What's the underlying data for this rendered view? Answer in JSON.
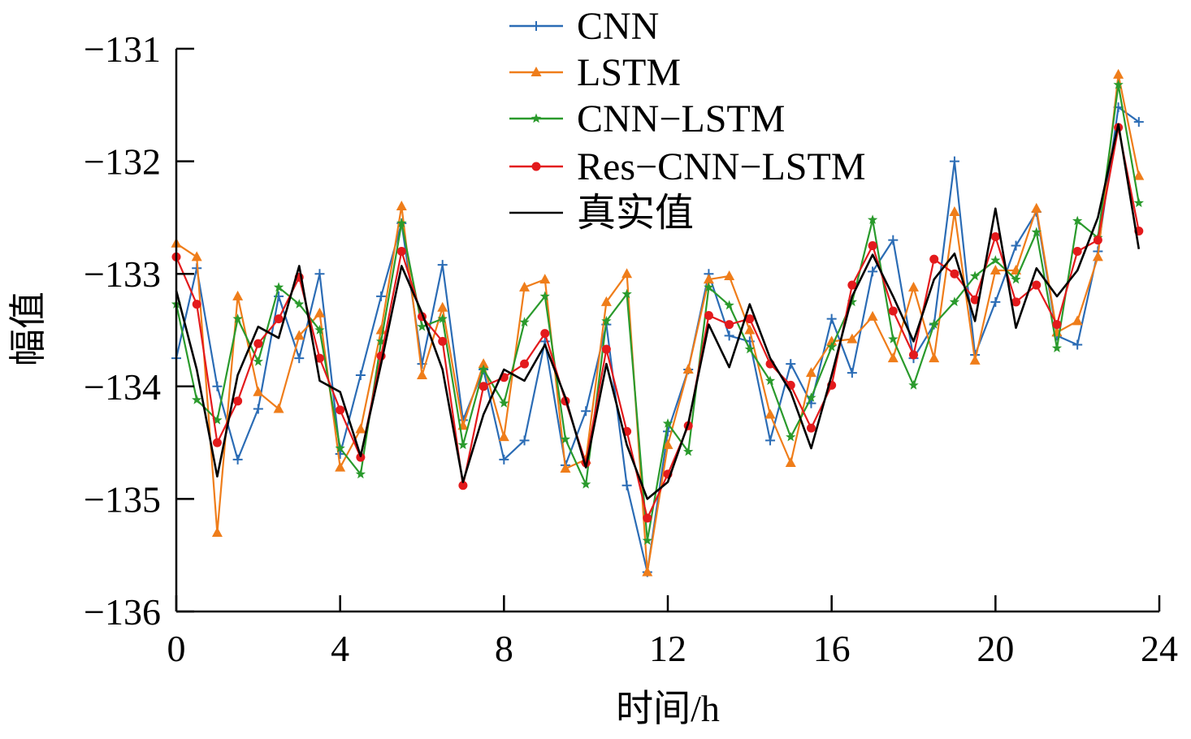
{
  "chart_data": {
    "type": "line",
    "title": "",
    "xlabel": "时间/h",
    "ylabel": "幅值",
    "xlim": [
      0,
      24
    ],
    "ylim": [
      -136,
      -131
    ],
    "xticks": [
      0,
      4,
      8,
      12,
      16,
      20,
      24
    ],
    "yticks": [
      -136,
      -135,
      -134,
      -133,
      -132,
      -131
    ],
    "ytick_labels": [
      "−136",
      "−135",
      "−134",
      "−133",
      "−132",
      "−131"
    ],
    "xtick_labels": [
      "0",
      "4",
      "8",
      "12",
      "16",
      "20",
      "24"
    ],
    "grid": false,
    "legend_position": "top-center",
    "x": [
      0,
      0.5,
      1,
      1.5,
      2,
      2.5,
      3,
      3.5,
      4,
      4.5,
      5,
      5.5,
      6,
      6.5,
      7,
      7.5,
      8,
      8.5,
      9,
      9.5,
      10,
      10.5,
      11,
      11.5,
      12,
      12.5,
      13,
      13.5,
      14,
      14.5,
      15,
      15.5,
      16,
      16.5,
      17,
      17.5,
      18,
      18.5,
      19,
      19.5,
      20,
      20.5,
      21,
      21.5,
      22,
      22.5,
      23,
      23.5
    ],
    "series": [
      {
        "name": "CNN",
        "color": "#2b6cb5",
        "marker": "plus",
        "values": [
          -133.75,
          -132.95,
          -134.0,
          -134.65,
          -134.2,
          -133.2,
          -133.75,
          -133.0,
          -134.6,
          -133.9,
          -133.2,
          -132.55,
          -133.8,
          -132.92,
          -134.3,
          -133.85,
          -134.65,
          -134.48,
          -133.6,
          -134.7,
          -134.22,
          -133.45,
          -134.88,
          -135.65,
          -134.4,
          -133.85,
          -133.0,
          -133.55,
          -133.6,
          -134.48,
          -133.8,
          -134.15,
          -133.4,
          -133.88,
          -132.98,
          -132.7,
          -133.75,
          -133.45,
          -132.0,
          -133.72,
          -133.25,
          -132.75,
          -132.45,
          -133.55,
          -133.63,
          -132.8,
          -131.52,
          -131.65
        ]
      },
      {
        "name": "LSTM",
        "color": "#ef7d1a",
        "marker": "triangle",
        "values": [
          -132.73,
          -132.85,
          -135.3,
          -133.2,
          -134.05,
          -134.2,
          -133.55,
          -133.35,
          -134.72,
          -134.38,
          -133.5,
          -132.4,
          -133.9,
          -133.3,
          -134.35,
          -133.8,
          -134.45,
          -133.12,
          -133.05,
          -134.73,
          -134.65,
          -133.25,
          -133.0,
          -135.65,
          -134.52,
          -133.85,
          -133.05,
          -133.02,
          -133.5,
          -134.25,
          -134.68,
          -133.88,
          -133.6,
          -133.58,
          -133.38,
          -133.75,
          -133.12,
          -133.75,
          -132.45,
          -133.77,
          -132.97,
          -132.97,
          -132.42,
          -133.52,
          -133.42,
          -132.85,
          -131.23,
          -132.13
        ]
      },
      {
        "name": "CNN−LSTM",
        "color": "#2a9a2c",
        "marker": "star",
        "values": [
          -133.27,
          -134.12,
          -134.3,
          -133.4,
          -133.78,
          -133.12,
          -133.27,
          -133.5,
          -134.55,
          -134.78,
          -133.6,
          -132.55,
          -133.47,
          -133.4,
          -134.52,
          -133.85,
          -134.15,
          -133.43,
          -133.2,
          -134.47,
          -134.87,
          -133.42,
          -133.18,
          -135.37,
          -134.33,
          -134.58,
          -133.12,
          -133.28,
          -133.67,
          -133.95,
          -134.45,
          -134.1,
          -133.65,
          -133.25,
          -132.52,
          -133.58,
          -133.99,
          -133.45,
          -133.25,
          -133.02,
          -132.88,
          -133.05,
          -132.63,
          -133.66,
          -132.53,
          -132.68,
          -131.32,
          -132.37
        ]
      },
      {
        "name": "Res−CNN−LSTM",
        "color": "#e31a1c",
        "marker": "circle",
        "values": [
          -132.85,
          -133.27,
          -134.5,
          -134.13,
          -133.62,
          -133.4,
          -133.03,
          -133.75,
          -134.21,
          -134.63,
          -133.73,
          -132.8,
          -133.38,
          -133.6,
          -134.88,
          -134.0,
          -133.92,
          -133.8,
          -133.53,
          -134.13,
          -134.68,
          -133.67,
          -134.4,
          -135.17,
          -134.78,
          -134.35,
          -133.37,
          -133.45,
          -133.4,
          -133.8,
          -133.99,
          -134.37,
          -133.99,
          -133.1,
          -132.75,
          -133.33,
          -133.72,
          -132.87,
          -133.0,
          -133.23,
          -132.67,
          -133.25,
          -133.1,
          -133.45,
          -132.8,
          -132.7,
          -131.7,
          -132.62
        ]
      },
      {
        "name": "真实值",
        "color": "#000000",
        "marker": "none",
        "values": [
          -133.15,
          -133.85,
          -134.8,
          -133.9,
          -133.47,
          -133.57,
          -132.93,
          -133.95,
          -134.05,
          -134.62,
          -133.8,
          -132.93,
          -133.35,
          -133.85,
          -134.85,
          -134.25,
          -133.85,
          -133.95,
          -133.63,
          -134.1,
          -134.72,
          -133.8,
          -134.52,
          -135.0,
          -134.85,
          -134.33,
          -133.45,
          -133.83,
          -133.27,
          -133.75,
          -134.05,
          -134.55,
          -133.9,
          -133.2,
          -132.83,
          -133.2,
          -133.6,
          -133.05,
          -132.82,
          -133.42,
          -132.42,
          -133.48,
          -132.95,
          -133.2,
          -132.97,
          -132.5,
          -131.67,
          -132.78
        ]
      }
    ]
  }
}
